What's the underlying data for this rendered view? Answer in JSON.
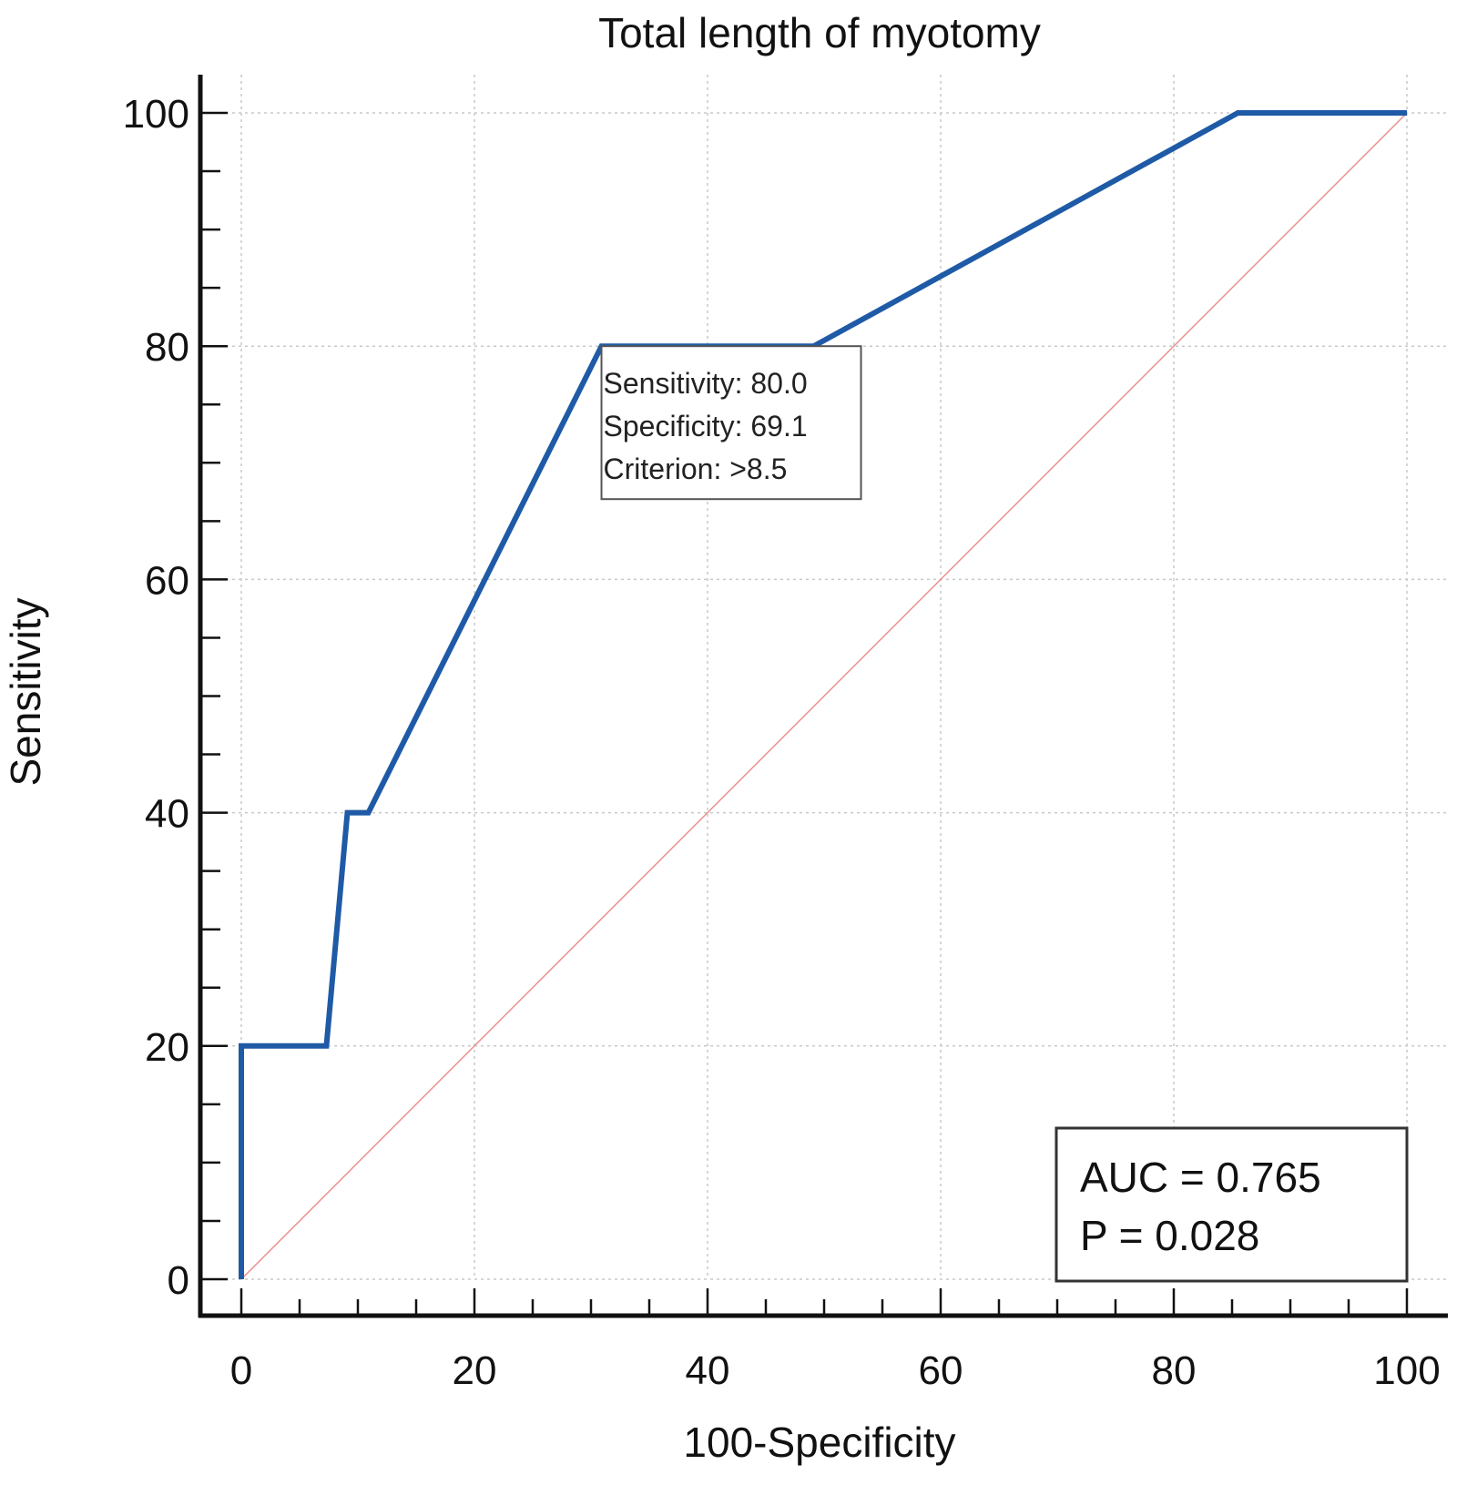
{
  "chart_data": {
    "type": "line",
    "title": "Total length of myotomy",
    "xlabel": "100-Specificity",
    "ylabel": "Sensitivity",
    "xlim": [
      0,
      100
    ],
    "ylim": [
      0,
      100
    ],
    "xticks": [
      0,
      20,
      40,
      60,
      80,
      100
    ],
    "yticks": [
      0,
      20,
      40,
      60,
      80,
      100
    ],
    "grid": true,
    "series": [
      {
        "color": "#1f5aa6",
        "points": [
          [
            0,
            0
          ],
          [
            0,
            20
          ],
          [
            7.3,
            20
          ],
          [
            9.1,
            40
          ],
          [
            10.9,
            40
          ],
          [
            30.9,
            80
          ],
          [
            49.1,
            80
          ],
          [
            85.5,
            100
          ],
          [
            100,
            100
          ]
        ]
      }
    ],
    "reference_line": {
      "points": [
        [
          0,
          0
        ],
        [
          100,
          100
        ]
      ],
      "color": "#e8928c"
    },
    "annotation": {
      "anchor": [
        30.9,
        80
      ],
      "lines": [
        "Sensitivity: 80.0",
        "Specificity: 69.1",
        "Criterion: >8.5"
      ]
    },
    "stats_box": {
      "lines": [
        "AUC = 0.765",
        "P = 0.028"
      ],
      "placement": "bottom-right"
    }
  }
}
